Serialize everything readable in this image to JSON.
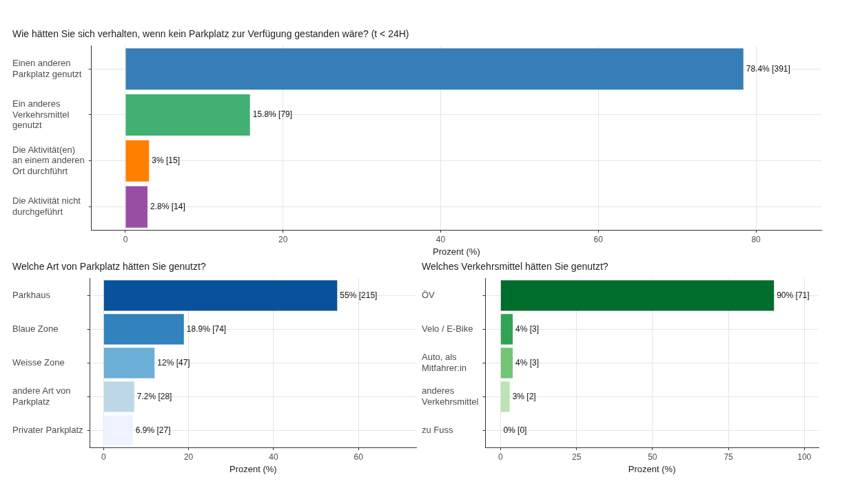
{
  "chart_data": [
    {
      "type": "bar",
      "orientation": "horizontal",
      "title": "Wie hätten Sie sich verhalten, wenn kein Parkplatz zur Verfügung gestanden wäre? (t < 24H)",
      "xlabel": "Prozent (%)",
      "categories": [
        "Einen anderen Parkplatz genutzt",
        "Ein anderes Verkehrsmittel genutzt",
        "Die Aktivität(en) an einem anderen Ort durchführt",
        "Die Aktivität nicht durchgeführt"
      ],
      "values": [
        78.4,
        15.8,
        3,
        2.8
      ],
      "colors": [
        "#377eb8",
        "#41b072",
        "#ff7f00",
        "#984ea3"
      ],
      "value_labels": [
        "78.4% [391]",
        "15.8% [79]",
        "3% [15]",
        "2.8% [14]"
      ],
      "xlim": [
        -4.3,
        88.3
      ],
      "xticks": [
        0,
        20,
        40,
        60,
        80
      ],
      "grid": true
    },
    {
      "type": "bar",
      "orientation": "horizontal",
      "title": "Welche Art von Parkplatz hätten Sie genutzt?",
      "xlabel": "Prozent (%)",
      "categories": [
        "Parkhaus",
        "Blaue Zone",
        "Weisse Zone",
        "andere Art von Parkplatz",
        "Privater Parkplatz"
      ],
      "values": [
        55,
        18.9,
        12,
        7.2,
        6.9
      ],
      "colors": [
        "#08519c",
        "#3182bd",
        "#6baed6",
        "#bdd7e7",
        "#eff3ff"
      ],
      "value_labels": [
        "55% [215]",
        "18.9% [74]",
        "12% [47]",
        "7.2% [28]",
        "6.9% [27]"
      ],
      "xlim": [
        -3.2,
        73.6
      ],
      "xticks": [
        0,
        20,
        40,
        60
      ],
      "grid": true
    },
    {
      "type": "bar",
      "orientation": "horizontal",
      "title": "Welches Verkehrsmittel hätten Sie genutzt?",
      "xlabel": "Prozent (%)",
      "categories": [
        "ÖV",
        "Velo / E-Bike",
        "Auto, als Mitfahrer:in",
        "anderes Verkehrsmittel",
        "zu Fuss"
      ],
      "values": [
        90,
        4,
        4,
        3,
        0
      ],
      "colors": [
        "#006d2c",
        "#31a354",
        "#74c476",
        "#bae4b3",
        "#edf8e9"
      ],
      "value_labels": [
        "90% [71]",
        "4% [3]",
        "4% [3]",
        "3% [2]",
        "0% [0]"
      ],
      "xlim": [
        -5,
        104.7
      ],
      "xticks": [
        0,
        25,
        50,
        75,
        100
      ],
      "grid": true
    }
  ]
}
